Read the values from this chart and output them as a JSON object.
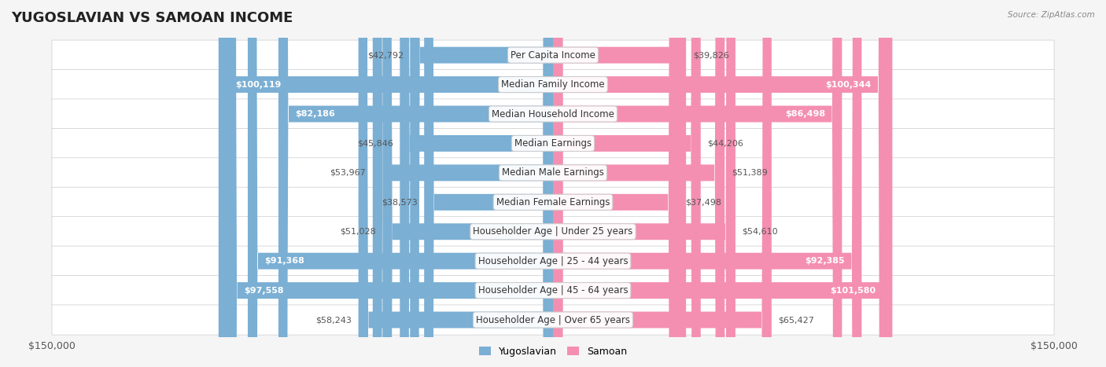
{
  "title": "YUGOSLAVIAN VS SAMOAN INCOME",
  "source": "Source: ZipAtlas.com",
  "categories": [
    "Per Capita Income",
    "Median Family Income",
    "Median Household Income",
    "Median Earnings",
    "Median Male Earnings",
    "Median Female Earnings",
    "Householder Age | Under 25 years",
    "Householder Age | 25 - 44 years",
    "Householder Age | 45 - 64 years",
    "Householder Age | Over 65 years"
  ],
  "yugoslavian_values": [
    42792,
    100119,
    82186,
    45846,
    53967,
    38573,
    51028,
    91368,
    97558,
    58243
  ],
  "samoan_values": [
    39826,
    100344,
    86498,
    44206,
    51389,
    37498,
    54610,
    92385,
    101580,
    65427
  ],
  "yugoslavian_color": "#7bafd4",
  "samoan_color": "#f48fb1",
  "yugoslavian_color_dark": "#5b8db8",
  "samoan_color_dark": "#e0608a",
  "bar_height": 0.55,
  "xlim": 150000,
  "background_color": "#f5f5f5",
  "row_bg_color": "#ffffff",
  "row_alt_bg_color": "#f0f0f0",
  "label_fontsize": 9,
  "title_fontsize": 13,
  "axis_label_fontsize": 9
}
